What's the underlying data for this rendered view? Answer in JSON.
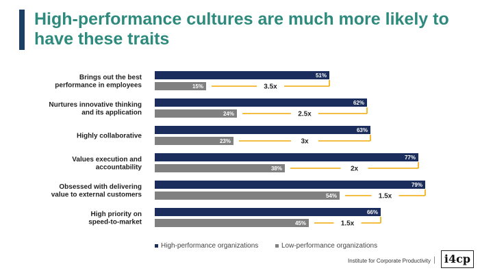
{
  "title": "High-performance cultures are much more likely to have these traits",
  "footer": {
    "source": "Institute for Corporate Productivity",
    "separator": "|",
    "logo_text": "i4cp"
  },
  "colors": {
    "title": "#2e8a7c",
    "accent": "#1b3f63",
    "high": "#1b2d5c",
    "low": "#808080",
    "ratio_line": "#f2a900"
  },
  "chart_data": {
    "type": "bar",
    "orientation": "horizontal",
    "title": "High-performance cultures are much more likely to have these traits",
    "categories": [
      [
        "Brings out the best",
        "performance in employees"
      ],
      [
        "Nurtures innovative thinking",
        "and its application"
      ],
      [
        "Highly collaborative"
      ],
      [
        "Values execution and",
        "accountability"
      ],
      [
        "Obsessed with delivering",
        "value to external customers"
      ],
      [
        "High priority on",
        "speed-to-market"
      ]
    ],
    "series": [
      {
        "name": "High-performance organizations",
        "values": [
          51,
          62,
          63,
          77,
          79,
          66
        ],
        "labels": [
          "51%",
          "62%",
          "63%",
          "77%",
          "79%",
          "66%"
        ]
      },
      {
        "name": "Low-performance organizations",
        "values": [
          15,
          24,
          23,
          38,
          54,
          45
        ],
        "labels": [
          "15%",
          "24%",
          "23%",
          "38%",
          "54%",
          "45%"
        ]
      }
    ],
    "ratios": [
      "3.5x",
      "2.5x",
      "3x",
      "2x",
      "1.5x",
      "1.5x"
    ],
    "xlim": [
      0,
      100
    ],
    "legend": "bottom",
    "grid": false
  }
}
